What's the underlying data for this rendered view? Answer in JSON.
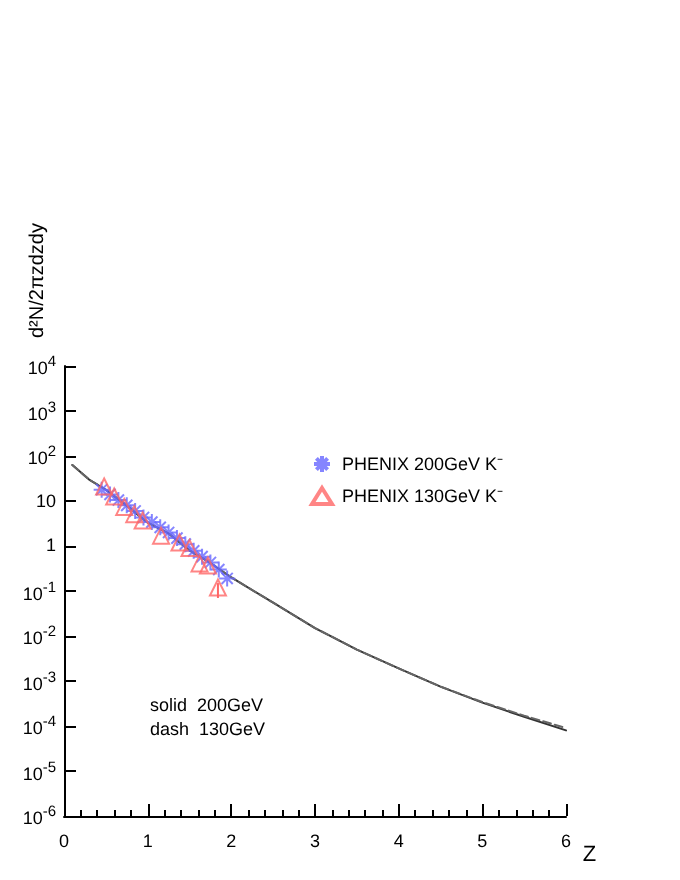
{
  "chart_data": {
    "type": "scatter",
    "xlabel": "Z",
    "ylabel": "d²N/2πzdzdy",
    "log": "y",
    "grid": false,
    "legend": "top right",
    "xlim": [
      0,
      6
    ],
    "xticks": [
      0,
      1,
      2,
      3,
      4,
      5,
      6
    ],
    "ylim": [
      1e-06,
      10000
    ],
    "yticks": [
      {
        "value": 1e-06,
        "label": "10$^{-6}$"
      },
      {
        "value": 1e-05,
        "label": "10$^{-5}$"
      },
      {
        "value": 0.0001,
        "label": "10$^{-4}$"
      },
      {
        "value": 0.001,
        "label": "10$^{-3}$"
      },
      {
        "value": 0.01,
        "label": "10$^{-2}$"
      },
      {
        "value": 0.1,
        "label": "10$^{-1}$"
      },
      1,
      10,
      {
        "value": 100,
        "label": "10$^{2}$"
      },
      {
        "value": 1000,
        "label": "10$^{3}$"
      },
      {
        "value": 10000,
        "label": "10$^{4}$"
      }
    ],
    "annotations": [
      "solid  200GeV",
      "dash  130GeV"
    ],
    "series": [
      {
        "type": "line",
        "color": "#333333",
        "line_style": "solid",
        "marker": "none",
        "x": [
          0.1,
          0.3,
          0.5,
          0.75,
          1,
          1.25,
          1.5,
          1.75,
          2,
          2.5,
          3,
          3.5,
          4,
          4.5,
          5,
          5.5,
          6
        ],
        "values": [
          63,
          30,
          17.8,
          7.9,
          3.3,
          1.9,
          0.8,
          0.42,
          0.2,
          0.055,
          0.015,
          0.005,
          0.0019,
          0.00075,
          0.00033,
          0.00016,
          8e-05
        ]
      },
      {
        "type": "line",
        "color": "#666666",
        "line_style": "dashed",
        "marker": "none",
        "x": [
          0.1,
          0.3,
          0.5,
          0.75,
          1,
          1.25,
          1.5,
          1.75,
          2,
          2.5,
          3,
          3.5,
          4,
          4.5,
          5,
          5.5,
          6
        ],
        "values": [
          63,
          30,
          17.8,
          7.9,
          3.3,
          1.9,
          0.8,
          0.42,
          0.2,
          0.055,
          0.015,
          0.005,
          0.0019,
          0.00075,
          0.00034,
          0.00017,
          9e-05
        ]
      },
      {
        "name": "PHENIX 200GeV K⁻",
        "color": "#6666ff",
        "marker": "cross",
        "x": [
          0.45,
          0.55,
          0.65,
          0.75,
          0.85,
          0.95,
          1.05,
          1.15,
          1.25,
          1.35,
          1.45,
          1.55,
          1.65,
          1.75,
          1.85,
          1.95
        ],
        "values": [
          17.8,
          14,
          10.5,
          8,
          6,
          4.3,
          3.4,
          2.6,
          2,
          1.5,
          1.1,
          0.78,
          0.58,
          0.43,
          0.3,
          0.19
        ]
      },
      {
        "name": "PHENIX 130GeV K⁻",
        "color": "#ff6666",
        "marker": "triangle",
        "x": [
          0.48,
          0.6,
          0.72,
          0.84,
          0.94,
          1.16,
          1.38,
          1.5,
          1.62,
          1.72,
          1.84
        ],
        "values": [
          21,
          12.6,
          7.4,
          5.1,
          3.7,
          1.7,
          1.2,
          0.9,
          0.41,
          0.37,
          0.12
        ],
        "errors": [
          null,
          null,
          null,
          null,
          null,
          null,
          null,
          null,
          null,
          null,
          [
            0.07,
            0.15
          ]
        ]
      }
    ]
  }
}
